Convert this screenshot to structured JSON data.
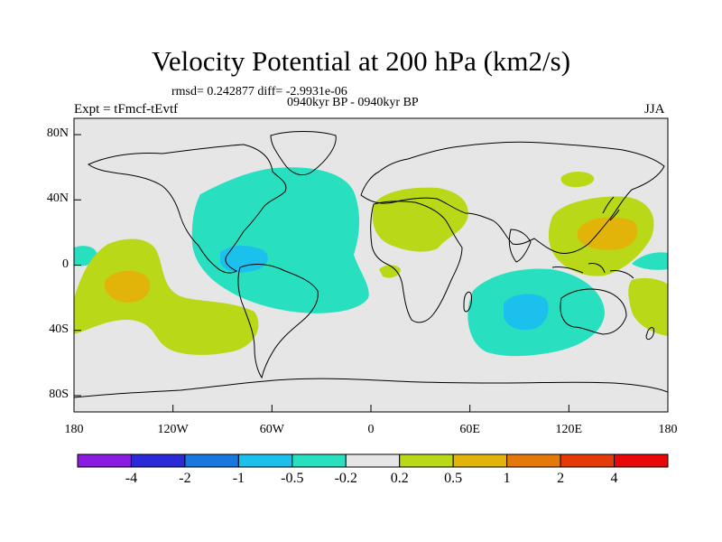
{
  "title": "Velocity Potential at 200 hPa (km2/s)",
  "stats": "rmsd= 0.242877  diff= -2.9931e-06",
  "experiment": "Expt = tFmcf-tEvtf",
  "period": "0940kyr BP - 0940kyr BP",
  "season": "JJA",
  "lat_ticks": [
    {
      "label": "80N",
      "value": 80
    },
    {
      "label": "40N",
      "value": 40
    },
    {
      "label": "0",
      "value": 0
    },
    {
      "label": "40S",
      "value": -40
    },
    {
      "label": "80S",
      "value": -80
    }
  ],
  "lon_ticks": [
    {
      "label": "180",
      "value": -180
    },
    {
      "label": "120W",
      "value": -120
    },
    {
      "label": "60W",
      "value": -60
    },
    {
      "label": "0",
      "value": 0
    },
    {
      "label": "60E",
      "value": 60
    },
    {
      "label": "120E",
      "value": 120
    },
    {
      "label": "180",
      "value": 180
    }
  ],
  "colorbar": {
    "colors": [
      "#8a1be0",
      "#2a2ad8",
      "#1878e0",
      "#1cc0ec",
      "#28e0c0",
      "#e6e6e6",
      "#b9d818",
      "#e2b40a",
      "#e47808",
      "#e43a08",
      "#e80808"
    ],
    "labels": [
      "-4",
      "-2",
      "-1",
      "-0.5",
      "-0.2",
      "0.2",
      "0.5",
      "1",
      "2",
      "4"
    ]
  },
  "colors": {
    "neutral": "#e6e6e6",
    "neg_light": "#28e0c0",
    "neg_mid": "#1cc0ec",
    "pos_light": "#b9d818",
    "pos_mid": "#e2b40a"
  }
}
